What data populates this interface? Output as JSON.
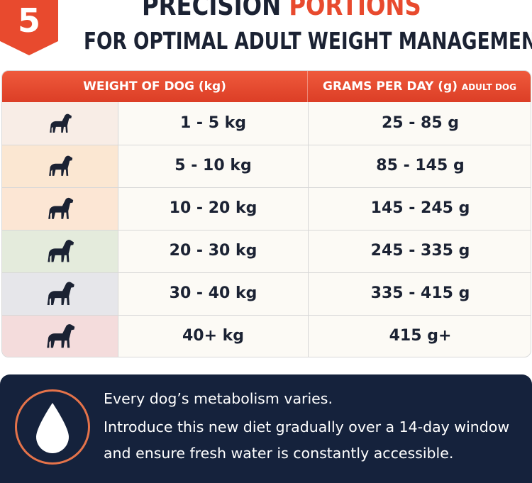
{
  "badge": {
    "number": "5"
  },
  "header": {
    "title_part1": "PRECISION ",
    "title_part2": "PORTIONS",
    "subtitle": "FOR OPTIMAL ADULT WEIGHT MANAGEMENT"
  },
  "table": {
    "col_weight_header": "WEIGHT OF DOG (kg)",
    "col_grams_header": "GRAMS PER DAY (g)",
    "col_grams_subheader": "ADULT DOG",
    "rows": [
      {
        "weight": "1 - 5 kg",
        "grams": "25 - 85 g",
        "icon": "small-dog-icon",
        "tint": "#f8ede6"
      },
      {
        "weight": "5 - 10 kg",
        "grams": "85 - 145 g",
        "icon": "dog-icon",
        "tint": "#fbe7d2"
      },
      {
        "weight": "10 - 20 kg",
        "grams": "145 - 245 g",
        "icon": "dog-icon",
        "tint": "#fce6d4"
      },
      {
        "weight": "20 - 30 kg",
        "grams": "245 - 335 g",
        "icon": "dog-icon",
        "tint": "#e4ebdc"
      },
      {
        "weight": "30 - 40 kg",
        "grams": "335 - 415 g",
        "icon": "dog-icon",
        "tint": "#e6e6ea"
      },
      {
        "weight": "40+ kg",
        "grams": "415 g+",
        "icon": "large-dog-icon",
        "tint": "#f4dcdc"
      }
    ]
  },
  "footer": {
    "icon": "water-drop-icon",
    "line1": "Every dog’s metabolism varies.",
    "line2": "Introduce this new diet gradually over a 14-day window",
    "line3": "and ensure fresh water is constantly accessible."
  },
  "colors": {
    "accent": "#e84a2e",
    "navy": "#15223c",
    "text_dark": "#1b2233"
  }
}
